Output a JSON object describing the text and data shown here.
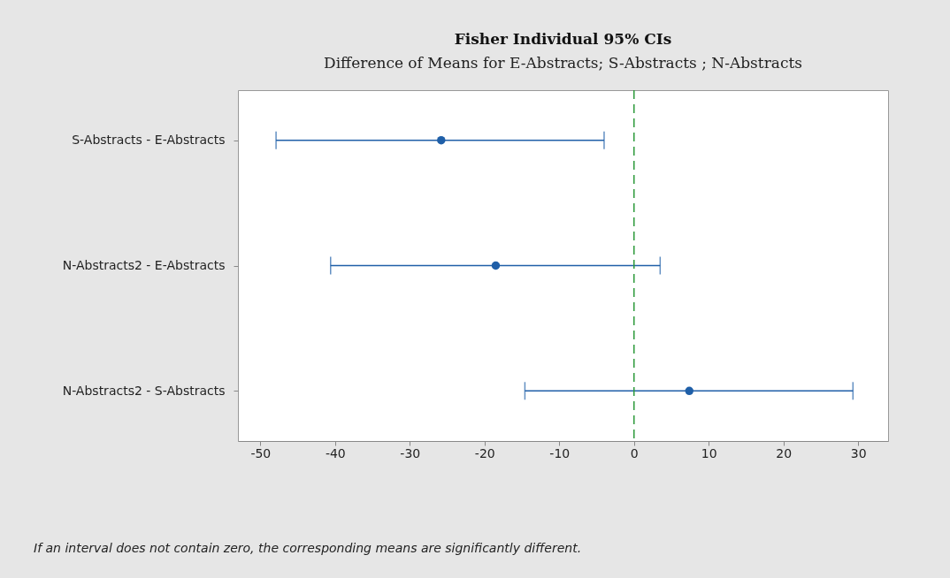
{
  "chart_data": {
    "type": "scatter",
    "title": "Fisher Individual 95% CIs",
    "subtitle": "Difference of Means for E-Abstracts; S-Abstracts ; N-Abstracts",
    "orientation": "horizontal",
    "categories": [
      "S-Abstracts  - E-Abstracts",
      "N-Abstracts2 - E-Abstracts",
      "N-Abstracts2 - S-Abstracts"
    ],
    "series": [
      {
        "color": "#1f5fa8",
        "values": [
          -25.8,
          -18.5,
          7.4
        ],
        "errors": [
          [
            -47.9,
            -4.0
          ],
          [
            -40.6,
            3.5
          ],
          [
            -14.6,
            29.3
          ]
        ]
      }
    ],
    "xlim": [
      -53,
      34
    ],
    "xticks": [
      -50,
      -40,
      -30,
      -20,
      -10,
      0,
      10,
      20,
      30
    ],
    "ref_lines": [
      {
        "axis": "x",
        "value": 0,
        "color": "#2e9a3c",
        "line_style": "dashed"
      }
    ],
    "marker": "circle",
    "grid": false,
    "annotations": [
      "If an interval does not contain zero, the corresponding means are significantly different."
    ]
  }
}
